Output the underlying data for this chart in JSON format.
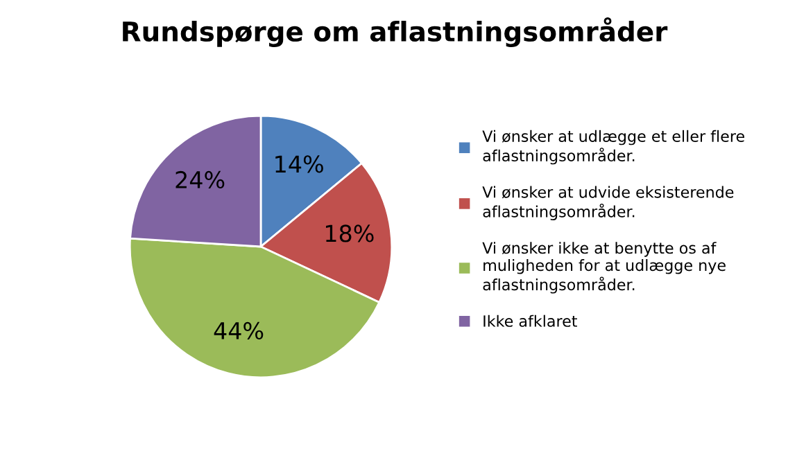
{
  "chart_data": {
    "type": "pie",
    "title": "Rundspørge om aflastningsområder",
    "categories": [
      "Vi ønsker at udlægge et eller flere\naflastningsområder.",
      "Vi ønsker at udvide eksisterende\naflastningsområder.",
      "Vi ønsker ikke at benytte os af\nmuligheden for at udlægge nye\naflastningsområder.",
      "Ikke afklaret"
    ],
    "values": [
      14,
      18,
      44,
      24
    ],
    "value_labels": [
      "14%",
      "18%",
      "44%",
      "24%"
    ],
    "colors": [
      "#4f81bd",
      "#c0504d",
      "#9bbb59",
      "#8064a2"
    ],
    "legend": "right"
  }
}
